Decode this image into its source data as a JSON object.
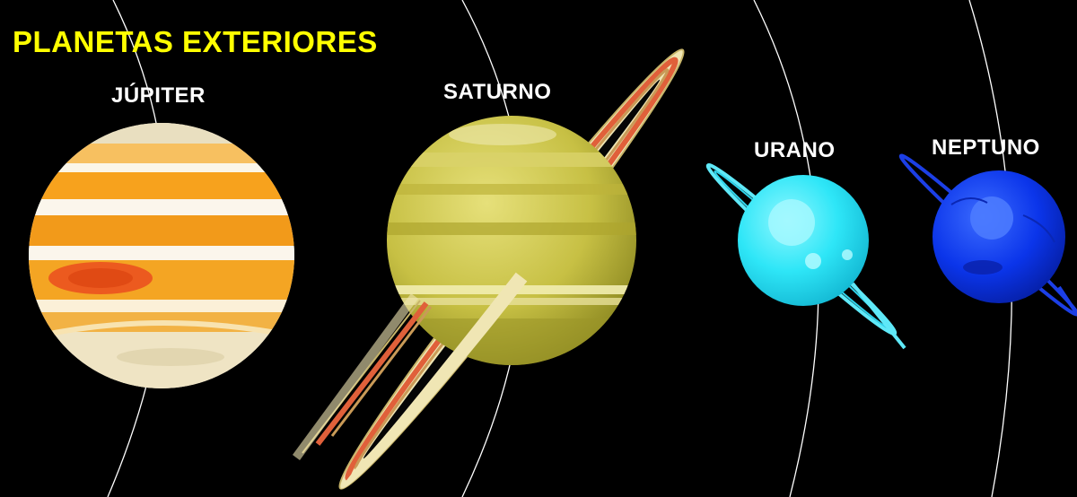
{
  "title": "PLANETAS EXTERIORES",
  "planets": [
    {
      "name": "JÚPITER",
      "color": "#f7a21d"
    },
    {
      "name": "SATURNO",
      "color": "#c9c246"
    },
    {
      "name": "URANO",
      "color": "#33e6f5"
    },
    {
      "name": "NEPTUNO",
      "color": "#0a33e0"
    }
  ],
  "colors": {
    "background": "#000000",
    "title": "#ffff00",
    "labels": "#ffffff",
    "orbits": "#ffffff"
  }
}
